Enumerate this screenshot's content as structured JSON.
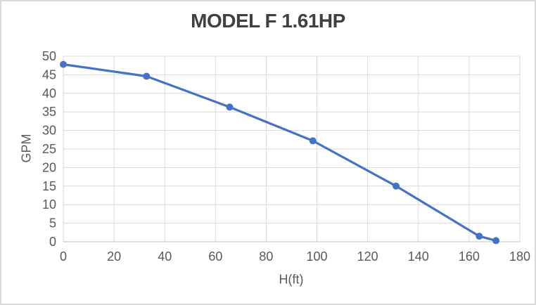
{
  "window": {
    "background_color": "#FFFFFF",
    "border_color": "#D9D9D9"
  },
  "chart_data": {
    "type": "line",
    "title": "MODEL F 1.61HP",
    "xlabel": "H(ft)",
    "ylabel": "GPM",
    "x": [
      0,
      32.8,
      65.6,
      98.4,
      131.2,
      164,
      170.6
    ],
    "y": [
      47.8,
      44.6,
      36.3,
      27.2,
      15,
      1.5,
      0.3
    ],
    "xlim": [
      0,
      180
    ],
    "ylim": [
      0,
      50
    ],
    "x_ticks": [
      0,
      20,
      40,
      60,
      80,
      100,
      120,
      140,
      160,
      180
    ],
    "y_ticks": [
      0,
      5,
      10,
      15,
      20,
      25,
      30,
      35,
      40,
      45,
      50
    ],
    "grid": true,
    "legend": false,
    "marker": "circle",
    "colors": {
      "line": "#4472C4",
      "marker": "#4472C4",
      "gridline": "#D9D9D9",
      "axis_line": "#BFBFBF",
      "tick_label": "#595959",
      "title": "#404040",
      "axis_title": "#595959"
    }
  }
}
